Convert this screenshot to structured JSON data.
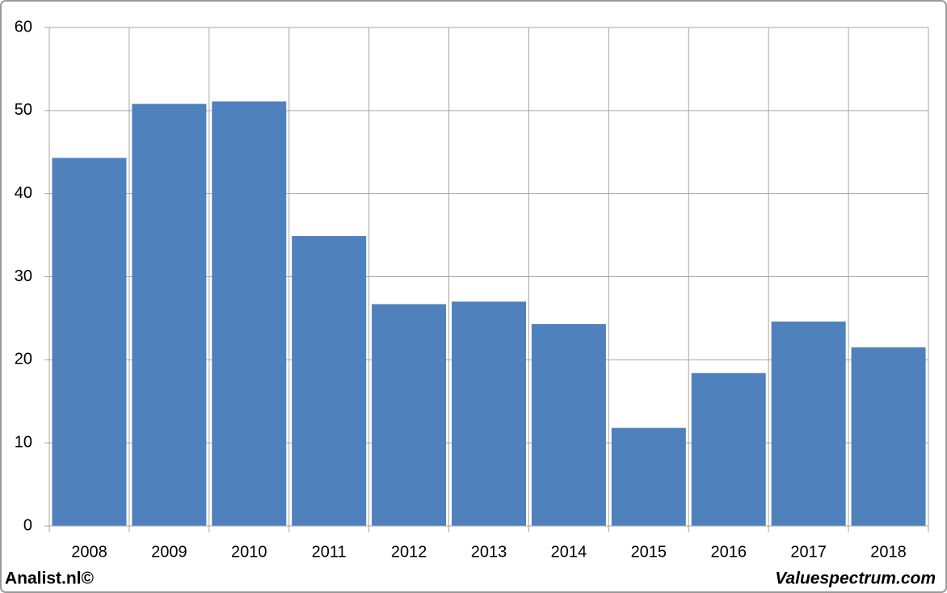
{
  "chart_data": {
    "type": "bar",
    "categories": [
      "2008",
      "2009",
      "2010",
      "2011",
      "2012",
      "2013",
      "2014",
      "2015",
      "2016",
      "2017",
      "2018"
    ],
    "values": [
      44.3,
      50.8,
      51.1,
      34.9,
      26.7,
      27.0,
      24.3,
      11.8,
      18.4,
      24.6,
      21.5
    ],
    "color": "#4f81bd",
    "ylim": [
      0,
      60
    ],
    "yticks": [
      0,
      10,
      20,
      30,
      40,
      50,
      60
    ],
    "grid": true,
    "source_left": "Analist.nl©",
    "source_right": "Valuespectrum.com"
  }
}
